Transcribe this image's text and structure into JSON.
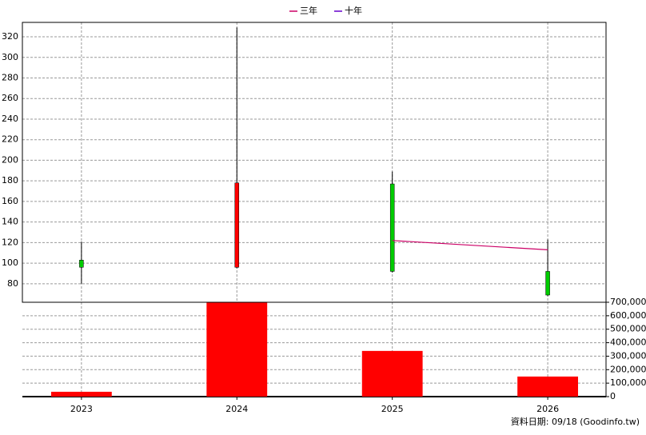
{
  "chart_data": [
    {
      "type": "candlestick",
      "categories": [
        "2023",
        "2024",
        "2025",
        "2026"
      ],
      "open": [
        103,
        96,
        177,
        92
      ],
      "high": [
        121,
        329,
        189,
        123
      ],
      "low": [
        80,
        95,
        91,
        68
      ],
      "close": [
        96,
        178,
        92,
        69
      ],
      "up_color": "#ff0000",
      "down_color": "#00cc00",
      "series": [
        {
          "name": "三年",
          "color": "#cc0066",
          "values": [
            null,
            null,
            122,
            113
          ]
        },
        {
          "name": "十年",
          "color": "#6600cc",
          "values": [
            null,
            null,
            null,
            null
          ]
        }
      ],
      "ylim": [
        62,
        334
      ],
      "yticks": [
        80,
        100,
        120,
        140,
        160,
        180,
        200,
        220,
        240,
        260,
        280,
        300,
        320
      ],
      "grid": true
    },
    {
      "type": "bar",
      "color": "#ff0000",
      "values": [
        36000,
        697000,
        339000,
        149000
      ],
      "ylim": [
        0,
        700000
      ],
      "yticks": [
        0,
        {
          "value": 100000,
          "label": "100,000"
        },
        {
          "value": 200000,
          "label": "200,000"
        },
        {
          "value": 300000,
          "label": "300,000"
        },
        {
          "value": 400000,
          "label": "400,000"
        },
        {
          "value": 500000,
          "label": "500,000"
        },
        {
          "value": 600000,
          "label": "600,000"
        },
        {
          "value": 700000,
          "label": "700,000"
        }
      ],
      "grid": true
    }
  ],
  "footer": "資料日期: 09/18  (Goodinfo.tw)"
}
